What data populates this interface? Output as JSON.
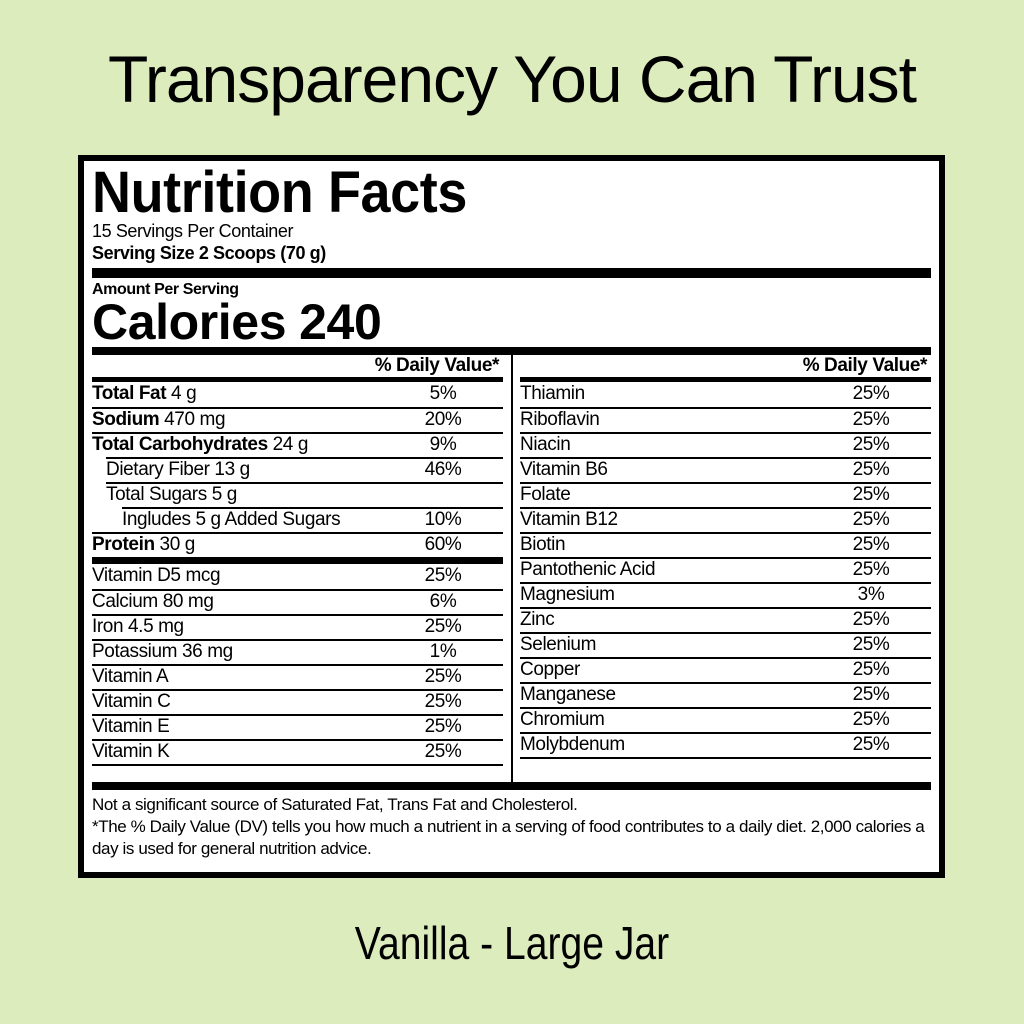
{
  "page": {
    "headline": "Transparency You Can Trust",
    "caption": "Vanilla - Large Jar",
    "colors": {
      "background": "#dcecbc",
      "label_background": "#ffffff",
      "text": "#000000"
    }
  },
  "label": {
    "title": "Nutrition Facts",
    "servings_per_container": "15 Servings Per Container",
    "serving_size": "Serving Size 2 Scoops (70 g)",
    "amount_per_serving": "Amount Per Serving",
    "calories_label": "Calories",
    "calories_value": "240",
    "daily_value_header": "% Daily Value*",
    "macro_rows": [
      {
        "bold": "Total Fat",
        "rest": "4 g",
        "value": "5%",
        "indent": 0
      },
      {
        "bold": "Sodium",
        "rest": "470 mg",
        "value": "20%",
        "indent": 0
      },
      {
        "bold": "Total Carbohydrates",
        "rest": "24 g",
        "value": "9%",
        "indent": 0
      },
      {
        "bold": "",
        "rest": "Dietary Fiber 13 g",
        "value": "46%",
        "indent": 1
      },
      {
        "bold": "",
        "rest": "Total Sugars 5 g",
        "value": "",
        "indent": 1
      },
      {
        "bold": "",
        "rest": "Ingludes 5 g Added Sugars",
        "value": "10%",
        "indent": 2
      },
      {
        "bold": "Protein",
        "rest": "30 g",
        "value": "60%",
        "indent": 0
      }
    ],
    "mineral_rows": [
      {
        "bold": "",
        "rest": "Vitamin D5 mcg",
        "value": "25%",
        "indent": 0
      },
      {
        "bold": "",
        "rest": "Calcium 80 mg",
        "value": "6%",
        "indent": 0
      },
      {
        "bold": "",
        "rest": "Iron 4.5 mg",
        "value": "25%",
        "indent": 0
      },
      {
        "bold": "",
        "rest": "Potassium 36 mg",
        "value": "1%",
        "indent": 0
      },
      {
        "bold": "",
        "rest": "Vitamin A",
        "value": "25%",
        "indent": 0
      },
      {
        "bold": "",
        "rest": "Vitamin C",
        "value": "25%",
        "indent": 0
      },
      {
        "bold": "",
        "rest": "Vitamin E",
        "value": "25%",
        "indent": 0
      },
      {
        "bold": "",
        "rest": "Vitamin K",
        "value": "25%",
        "indent": 0
      }
    ],
    "vitamin_rows": [
      {
        "bold": "",
        "rest": "Thiamin",
        "value": "25%",
        "indent": 0
      },
      {
        "bold": "",
        "rest": "Riboflavin",
        "value": "25%",
        "indent": 0
      },
      {
        "bold": "",
        "rest": "Niacin",
        "value": "25%",
        "indent": 0
      },
      {
        "bold": "",
        "rest": "Vitamin B6",
        "value": "25%",
        "indent": 0
      },
      {
        "bold": "",
        "rest": "Folate",
        "value": "25%",
        "indent": 0
      },
      {
        "bold": "",
        "rest": "Vitamin B12",
        "value": "25%",
        "indent": 0
      },
      {
        "bold": "",
        "rest": "Biotin",
        "value": "25%",
        "indent": 0
      },
      {
        "bold": "",
        "rest": "Pantothenic Acid",
        "value": "25%",
        "indent": 0
      },
      {
        "bold": "",
        "rest": "Magnesium",
        "value": "3%",
        "indent": 0
      },
      {
        "bold": "",
        "rest": "Zinc",
        "value": "25%",
        "indent": 0
      },
      {
        "bold": "",
        "rest": "Selenium",
        "value": "25%",
        "indent": 0
      },
      {
        "bold": "",
        "rest": "Copper",
        "value": "25%",
        "indent": 0
      },
      {
        "bold": "",
        "rest": "Manganese",
        "value": "25%",
        "indent": 0
      },
      {
        "bold": "",
        "rest": "Chromium",
        "value": "25%",
        "indent": 0
      },
      {
        "bold": "",
        "rest": "Molybdenum",
        "value": "25%",
        "indent": 0
      }
    ],
    "footnote_1": "Not a significant source of Saturated Fat, Trans Fat and Cholesterol.",
    "footnote_2": "*The % Daily Value (DV) tells you how much a nutrient in a serving of food contributes to a daily diet. 2,000 calories a day is used for general nutrition advice."
  }
}
